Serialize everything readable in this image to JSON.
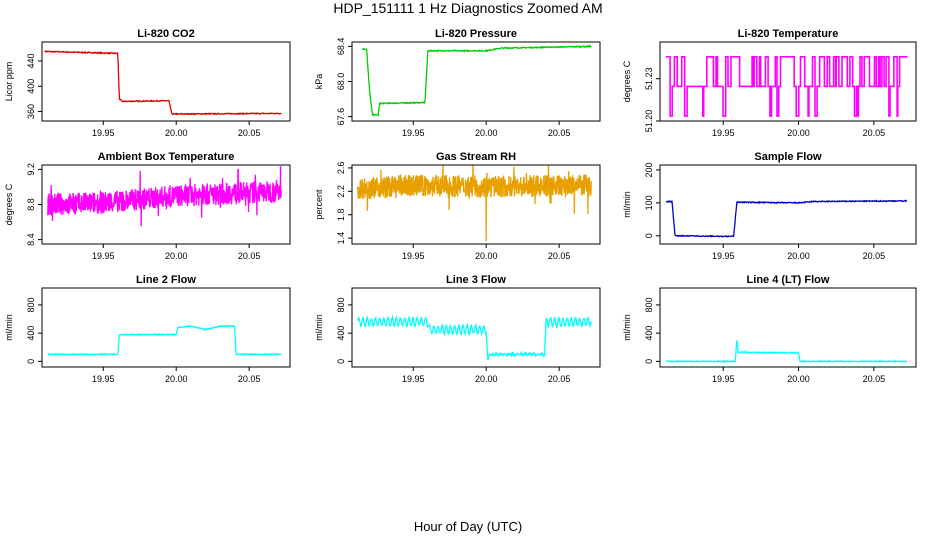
{
  "figure": {
    "title": "HDP_151111  1 Hz Diagnostics Zoomed AM",
    "xlabel": "Hour of Day (UTC)"
  },
  "chart_data": [
    {
      "type": "line",
      "title": "Li-820 CO2",
      "ylabel": "Licor ppm",
      "color": "#dd0000",
      "noise": "low",
      "xlim": [
        19.908,
        20.078
      ],
      "ylim": [
        345,
        470
      ],
      "xticks": [
        "19.95",
        "20.00",
        "20.05"
      ],
      "yticks": [
        "360",
        "400",
        "440"
      ],
      "series": [
        {
          "name": "CO2",
          "x": [
            19.91,
            19.96,
            19.961,
            19.963,
            19.995,
            19.997,
            20.072
          ],
          "y": [
            455,
            452,
            380,
            376,
            377,
            356,
            357
          ]
        }
      ]
    },
    {
      "type": "line",
      "title": "Li-820 Pressure",
      "ylabel": "kPa",
      "color": "#00cc00",
      "noise": "low",
      "xlim": [
        19.908,
        20.078
      ],
      "ylim": [
        67.55,
        68.45
      ],
      "xticks": [
        "19.95",
        "20.00",
        "20.05"
      ],
      "yticks": [
        "67.6",
        "68.0",
        "68.4"
      ],
      "series": [
        {
          "name": "Pressure",
          "x": [
            19.915,
            19.918,
            19.92,
            19.922,
            19.926,
            19.927,
            19.958,
            19.96,
            20.0,
            20.01,
            20.04,
            20.072
          ],
          "y": [
            68.37,
            68.37,
            67.9,
            67.62,
            67.62,
            67.75,
            67.76,
            68.35,
            68.35,
            68.38,
            68.39,
            68.4
          ]
        }
      ]
    },
    {
      "type": "line",
      "title": "Li-820 Temperature",
      "ylabel": "degrees C",
      "color": "#ff00ff",
      "noise": "square",
      "xlim": [
        19.908,
        20.078
      ],
      "ylim": [
        51.2,
        51.256
      ],
      "xticks": [
        "19.95",
        "20.00",
        "20.05"
      ],
      "yticks": [
        "51.20",
        "51.23"
      ],
      "series": [
        {
          "name": "Temperature",
          "x": [
            19.912,
            20.072
          ],
          "y": [
            51.23,
            51.23
          ]
        }
      ]
    },
    {
      "type": "line",
      "title": "Ambient Box Temperature",
      "ylabel": "degrees C",
      "color": "#ff00ff",
      "noise": "high",
      "xlim": [
        19.908,
        20.078
      ],
      "ylim": [
        8.35,
        9.25
      ],
      "xticks": [
        "19.95",
        "20.00",
        "20.05"
      ],
      "yticks": [
        "8.4",
        "8.8",
        "9.2"
      ],
      "series": [
        {
          "name": "Box Temp",
          "x": [
            19.912,
            19.95,
            20.0,
            20.072
          ],
          "y": [
            8.8,
            8.82,
            8.9,
            8.95
          ]
        }
      ]
    },
    {
      "type": "line",
      "title": "Gas Stream RH",
      "ylabel": "percent",
      "color": "#e8a000",
      "noise": "high",
      "xlim": [
        19.908,
        20.078
      ],
      "ylim": [
        1.3,
        2.65
      ],
      "xticks": [
        "19.95",
        "20.00",
        "20.05"
      ],
      "yticks": [
        "1.4",
        "1.8",
        "2.2",
        "2.6"
      ],
      "series": [
        {
          "name": "RH",
          "x": [
            19.912,
            19.95,
            20.0,
            20.072
          ],
          "y": [
            2.25,
            2.3,
            2.28,
            2.3
          ]
        }
      ]
    },
    {
      "type": "line",
      "title": "Sample Flow",
      "ylabel": "ml/min",
      "color": "#0000cc",
      "noise": "low",
      "xlim": [
        19.908,
        20.078
      ],
      "ylim": [
        -25,
        215
      ],
      "xticks": [
        "19.95",
        "20.00",
        "20.05"
      ],
      "yticks": [
        "0",
        "100",
        "200"
      ],
      "series": [
        {
          "name": "Sample Flow",
          "x": [
            19.912,
            19.916,
            19.918,
            19.955,
            19.957,
            19.959,
            20.0,
            20.01,
            20.072
          ],
          "y": [
            104,
            104,
            0,
            -2,
            0,
            102,
            100,
            104,
            106
          ]
        }
      ]
    },
    {
      "type": "line",
      "title": "Line 2 Flow",
      "ylabel": "ml/min",
      "color": "#00ffff",
      "noise": "low",
      "xlim": [
        19.908,
        20.078
      ],
      "ylim": [
        -80,
        1040
      ],
      "xticks": [
        "19.95",
        "20.00",
        "20.05"
      ],
      "yticks": [
        "0",
        "400",
        "800"
      ],
      "series": [
        {
          "name": "Line 2",
          "x": [
            19.912,
            19.96,
            19.961,
            20.0,
            20.001,
            20.01,
            20.02,
            20.03,
            20.04,
            20.041,
            20.072
          ],
          "y": [
            100,
            100,
            380,
            380,
            480,
            500,
            450,
            500,
            500,
            100,
            100
          ]
        }
      ]
    },
    {
      "type": "line",
      "title": "Line 3 Flow",
      "ylabel": "ml/min",
      "color": "#00ffff",
      "noise": "wave",
      "xlim": [
        19.908,
        20.078
      ],
      "ylim": [
        -80,
        1040
      ],
      "xticks": [
        "19.95",
        "20.00",
        "20.05"
      ],
      "yticks": [
        "0",
        "400",
        "800"
      ],
      "series": [
        {
          "name": "Line 3",
          "x": [
            19.912,
            19.96,
            19.961,
            20.0,
            20.001,
            20.002,
            20.04,
            20.041,
            20.072
          ],
          "y": [
            560,
            560,
            450,
            450,
            0,
            100,
            100,
            550,
            560
          ]
        }
      ]
    },
    {
      "type": "line",
      "title": "Line 4 (LT) Flow",
      "ylabel": "ml/min",
      "color": "#00ffff",
      "noise": "low",
      "xlim": [
        19.908,
        20.078
      ],
      "ylim": [
        -80,
        1040
      ],
      "xticks": [
        "19.95",
        "20.00",
        "20.05"
      ],
      "yticks": [
        "0",
        "400",
        "800"
      ],
      "series": [
        {
          "name": "Line 4",
          "x": [
            19.912,
            19.958,
            19.959,
            19.96,
            19.961,
            20.0,
            20.001,
            20.072
          ],
          "y": [
            0,
            0,
            320,
            120,
            130,
            120,
            0,
            0
          ]
        }
      ]
    }
  ]
}
